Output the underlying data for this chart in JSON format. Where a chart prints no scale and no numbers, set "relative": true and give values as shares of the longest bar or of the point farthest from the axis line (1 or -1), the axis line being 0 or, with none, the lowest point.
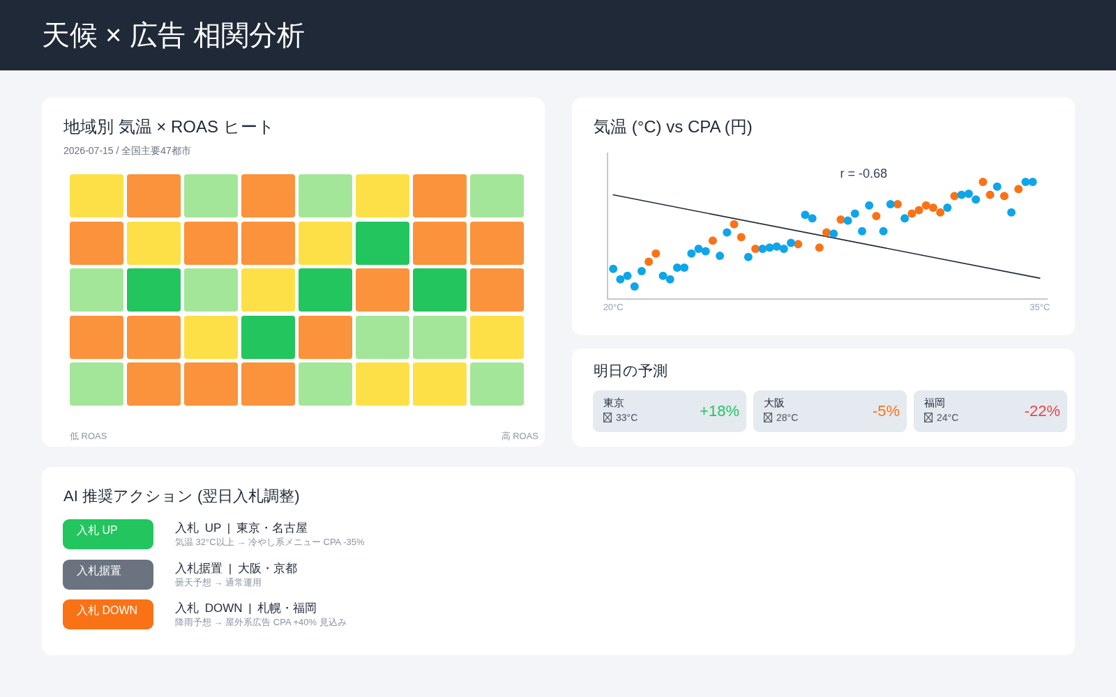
{
  "chart_data": [
    {
      "type": "other",
      "title": "天候 × 広告 相関分析"
    },
    {
      "type": "other",
      "title": "地域別 気温 × ROAS ヒート",
      "subtitle": "2026-07-15 / 全国主要47都市",
      "categories": [
        null,
        null,
        null,
        null,
        null,
        null,
        null,
        null
      ],
      "colors": [
        "#fde047",
        "#fb923c",
        "#a3e699",
        "#fb923c",
        "#a3e699",
        "#fde047",
        "#fb923c",
        "#a3e699",
        "#fb923c",
        "#fde047",
        "#fb923c",
        "#fb923c",
        "#fde047",
        "#22c55e",
        "#fb923c",
        "#fb923c",
        "#a3e699",
        "#22c55e",
        "#a3e699",
        "#fde047",
        "#22c55e",
        "#fb923c",
        "#22c55e",
        "#fb923c",
        "#fb923c",
        "#fb923c",
        "#fde047",
        "#22c55e",
        "#fb923c",
        "#a3e699",
        "#a3e699",
        "#fde047",
        "#a3e699",
        "#fb923c",
        "#fb923c",
        "#fb923c",
        "#a3e699",
        "#fde047",
        "#fde047",
        "#a3e699"
      ],
      "annotations": [
        "低 ROAS",
        "高 ROAS"
      ]
    },
    {
      "type": "scatter",
      "title": "気温 (°C) vs CPA (円)",
      "relative": true,
      "marker": "circle",
      "tick_labels": "x",
      "xlim": [
        19.8,
        35.25
      ],
      "xticks": [
        {
          "value": 20,
          "label": "20°C"
        },
        {
          "value": 35,
          "label": "35°C"
        }
      ],
      "annotations": [
        "r = -0.68"
      ],
      "series": [
        {
          "color": "#0ea5e9",
          "x": [
            20,
            20.25,
            20.5,
            20.75,
            21,
            21.75,
            22,
            22.25,
            22.5,
            22.75,
            23,
            23.25,
            23.75,
            24,
            24.75,
            25.25,
            25.5,
            25.75,
            26,
            26.25,
            26.75,
            27,
            27.75,
            28.25,
            28.5,
            28.75,
            29,
            29.5,
            29.75,
            30.25,
            31.75,
            32.25,
            32.5,
            32.75,
            33.5,
            34,
            34.5,
            34.75
          ],
          "values": [
            0.26,
            0.17,
            0.2,
            0.11,
            0.24,
            0.2,
            0.17,
            0.27,
            0.27,
            0.39,
            0.43,
            0.41,
            0.37,
            0.57,
            0.36,
            0.43,
            0.44,
            0.45,
            0.43,
            0.48,
            0.72,
            0.69,
            0.56,
            0.67,
            0.73,
            0.58,
            0.8,
            0.58,
            0.81,
            0.69,
            0.78,
            0.89,
            0.9,
            0.85,
            0.96,
            0.74,
            1,
            1
          ]
        },
        {
          "color": "#f97316",
          "x": [
            21.25,
            21.5,
            23.5,
            24.25,
            24.5,
            25,
            26.5,
            27.25,
            27.5,
            28,
            29.25,
            30,
            30.5,
            30.75,
            31,
            31.25,
            31.5,
            32,
            33,
            33.25,
            33.75,
            34.25
          ],
          "values": [
            0.32,
            0.39,
            0.5,
            0.64,
            0.53,
            0.43,
            0.47,
            0.44,
            0.57,
            0.68,
            0.71,
            0.81,
            0.73,
            0.76,
            0.8,
            0.78,
            0.74,
            0.88,
            1,
            0.89,
            0.88,
            0.94
          ]
        },
        {
          "type": "line",
          "color": "#1e293b",
          "marker": "none",
          "x": [
            20,
            35
          ],
          "values": [
            0.89,
            0.18
          ]
        }
      ]
    },
    {
      "type": "other",
      "title": "明日の予測",
      "categories": [
        "東京",
        "大阪",
        "福岡"
      ],
      "value_labels": [
        "+18%",
        "-5%",
        "-22%"
      ],
      "annotations": [
        "33°C",
        "28°C",
        "24°C"
      ]
    },
    {
      "type": "other",
      "title": "AI 推奨アクション (翌日入札調整)",
      "categories": [
        "入札 UP",
        "入札据置",
        "入札 DOWN"
      ],
      "colors": [
        "#22c55e",
        "#6b7280",
        "#f97316"
      ],
      "annotations": [
        "入札 UP | 東京・名古屋",
        "気温 32°C以上 → 冷やし系メニュー CPA -35%",
        "入札据置 | 大阪・京都",
        "曇天予想 → 通常運用",
        "入札 DOWN | 札幌・福岡",
        "降雨予想 → 屋外系広告 CPA +40% 見込み"
      ]
    }
  ]
}
